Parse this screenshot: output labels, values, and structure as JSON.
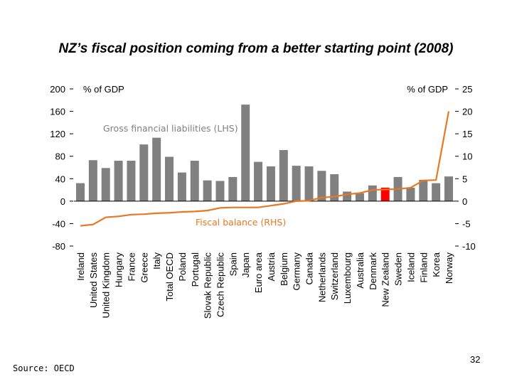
{
  "chart_data": {
    "type": "bar",
    "title": "NZ’s fiscal position coming from a better starting point (2008)",
    "categories": [
      "Ireland",
      "United States",
      "United Kingdom",
      "Hungary",
      "France",
      "Greece",
      "Italy",
      "Total OECD",
      "Poland",
      "Portugal",
      "Slovak Republic",
      "Czech Republic",
      "Spain",
      "Japan",
      "Euro area",
      "Austria",
      "Belgium",
      "Germany",
      "Canada",
      "Netherlands",
      "Switzerland",
      "Luxembourg",
      "Australia",
      "Denmark",
      "New Zealand",
      "Sweden",
      "Iceland",
      "Finland",
      "Korea",
      "Norway"
    ],
    "series": [
      {
        "name": "Gross financial liabilities (LHS)",
        "type": "bar",
        "axis": "left",
        "color": "#808080",
        "values": [
          32,
          73,
          59,
          72,
          72,
          101,
          113,
          79,
          51,
          72,
          37,
          36,
          43,
          172,
          70,
          62,
          91,
          63,
          62,
          54,
          48,
          17,
          14,
          28,
          24,
          43,
          24,
          38,
          32,
          44
        ]
      },
      {
        "name": "Fiscal balance (RHS)",
        "type": "line",
        "axis": "right",
        "color": "#E87722",
        "values": [
          -5.5,
          -5.2,
          -3.6,
          -3.4,
          -3.0,
          -2.9,
          -2.7,
          -2.6,
          -2.4,
          -2.3,
          -2.1,
          -1.5,
          -1.4,
          -1.4,
          -1.4,
          -1.0,
          -0.6,
          0.0,
          0.1,
          0.8,
          1.0,
          1.5,
          1.8,
          2.5,
          2.6,
          2.7,
          3.0,
          4.6,
          4.7,
          20.0
        ]
      }
    ],
    "highlight": {
      "category": "New Zealand",
      "color": "#FF0000"
    },
    "ylabel_left": "% of GDP",
    "ylabel_right": "% of GDP",
    "ylim_left": [
      -80,
      200
    ],
    "yticks_left": [
      "200",
      "160",
      "120",
      "80",
      "40",
      "0",
      "-40",
      "-80"
    ],
    "ylim_right": [
      -10,
      25
    ],
    "yticks_right": [
      "25",
      "20",
      "15",
      "10",
      "5",
      "0",
      "-5",
      "-10"
    ],
    "grid": false,
    "legend": "inline labels"
  },
  "footer": {
    "source": "Source: OECD",
    "page_number": "32"
  }
}
